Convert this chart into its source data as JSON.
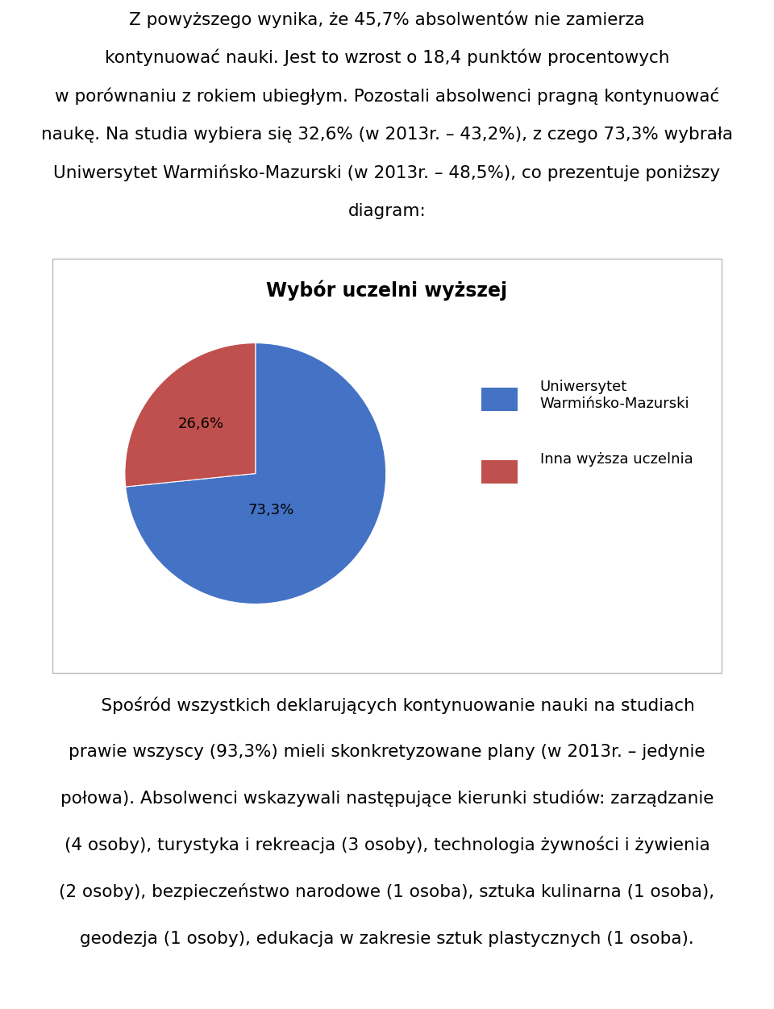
{
  "title": "Wybór uczelni wyższej",
  "slices": [
    73.3,
    26.6
  ],
  "labels": [
    "73,3%",
    "26,6%"
  ],
  "colors": [
    "#4472C4",
    "#C0504D"
  ],
  "legend_labels": [
    "Uniwersytet\nWarmińsko-Mazurski",
    "Inna wyższa uczelnia"
  ],
  "legend_colors": [
    "#4472C4",
    "#C0504D"
  ],
  "para1_lines": [
    "Z powyższego wynika, że 45,7% absolwentów nie zamierza",
    "kontynuować nauki. Jest to wzrost o 18,4 punktów procentowych",
    "w porównaniu z rokiem ubiegłym. Pozostali absolwenci pragną kontynuować",
    "naukę. Na studia wybiera się 32,6% (w 2013r. – 43,2%), z czego 73,3% wybrała",
    "Uniwersytet Warmińsko-Mazurski (w 2013r. – 48,5%), co prezentuje poniższy",
    "diagram:"
  ],
  "para2_lines": [
    "    Spośród wszystkich deklarujących kontynuowanie nauki na studiach",
    "prawie wszyscy (93,3%) mieli skonkretyzowane plany (w 2013r. – jedynie",
    "połowa). Absolwenci wskazywali następujące kierunki studiów: zarządzanie",
    "(4 osoby), turystyka i rekreacja (3 osoby), technologia żywności i żywienia",
    "(2 osoby), bezpieczeństwo narodowe (1 osoba), sztuka kulinarna (1 osoba),",
    "geodezja (1 osoby), edukacja w zakresie sztuk plastycznych (1 osoba)."
  ],
  "text_fontsize": 15.5,
  "title_fontsize": 17,
  "legend_fontsize": 13,
  "label_fontsize": 13,
  "background_color": "#FFFFFF",
  "box_edge_color": "#BBBBBB"
}
